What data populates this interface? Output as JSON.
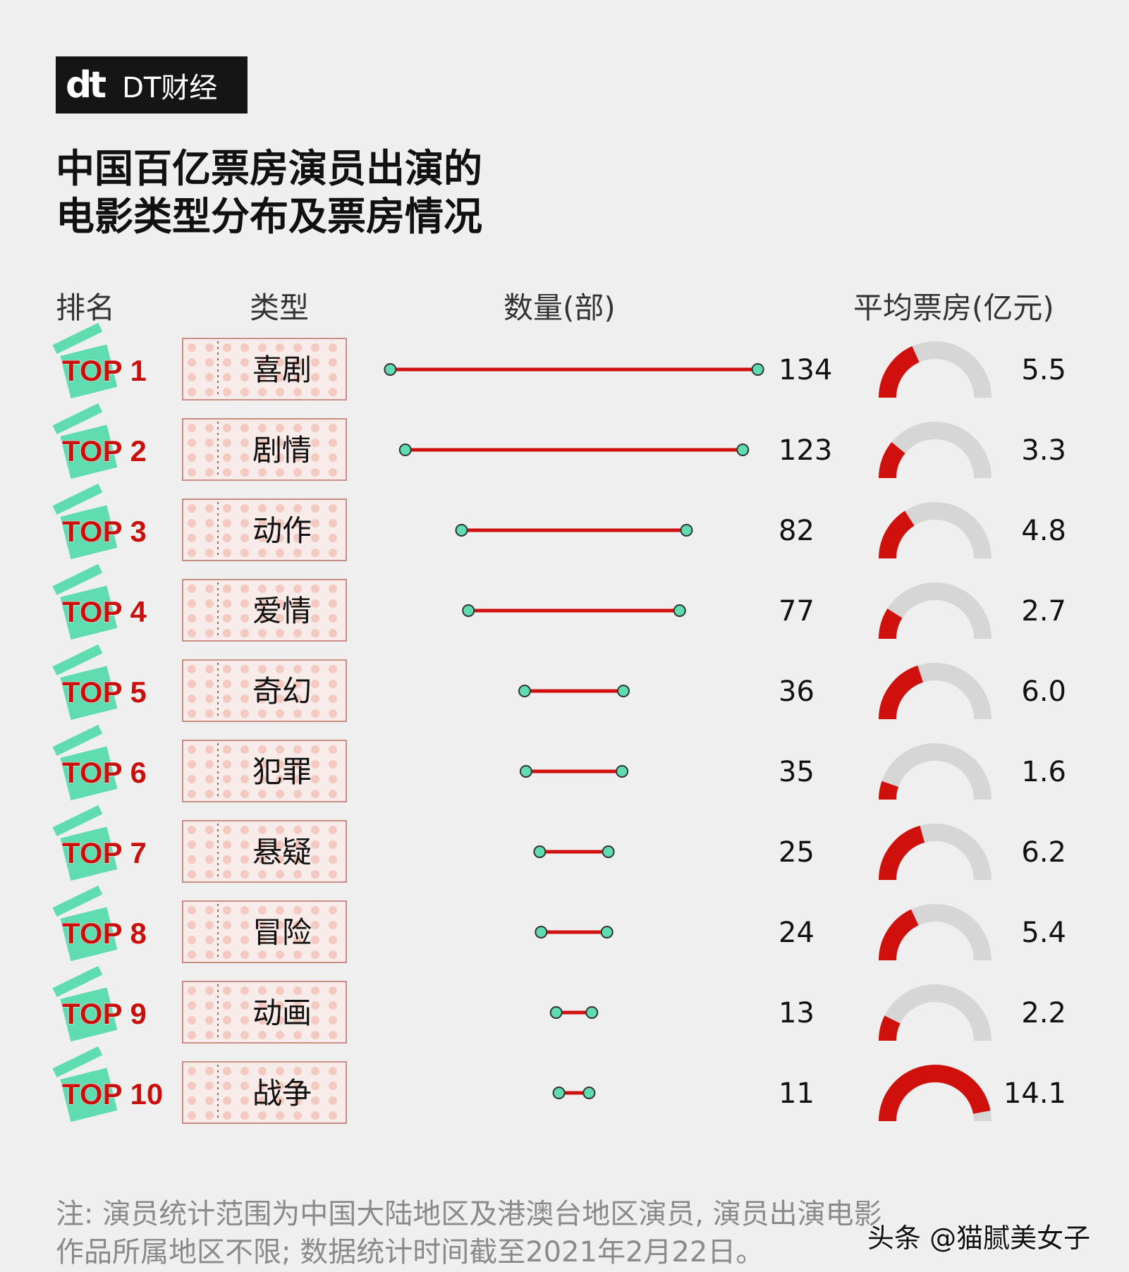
{
  "brand": {
    "mark": "dt",
    "name": "DT财经"
  },
  "title": [
    "中国百亿票房演员出演的",
    "电影类型分布及票房情况"
  ],
  "headers": {
    "rank": "排名",
    "type": "类型",
    "count": "数量(部)",
    "avg": "平均票房(亿元)"
  },
  "colors": {
    "red": "#d0100c",
    "green": "#5fdcb0",
    "gray": "#d6d6d6",
    "ticket": "#f3c9c0"
  },
  "chart_data": {
    "type": "table",
    "rank_labels": [
      "TOP 1",
      "TOP 2",
      "TOP 3",
      "TOP 4",
      "TOP 5",
      "TOP 6",
      "TOP 7",
      "TOP 8",
      "TOP 9",
      "TOP 10"
    ],
    "categories": [
      "喜剧",
      "剧情",
      "动作",
      "爱情",
      "奇幻",
      "犯罪",
      "悬疑",
      "冒险",
      "动画",
      "战争"
    ],
    "series": [
      {
        "name": "数量(部)",
        "values": [
          134,
          123,
          82,
          77,
          36,
          35,
          25,
          24,
          13,
          11
        ]
      },
      {
        "name": "平均票房(亿元)",
        "values": [
          "5.5",
          "3.3",
          "4.8",
          "2.7",
          "6.0",
          "1.6",
          "6.2",
          "5.4",
          "2.2",
          "14.1"
        ]
      }
    ],
    "gauge_max": 15
  },
  "note": [
    "注: 演员统计范围为中国大陆地区及港澳台地区演员, 演员出演电影",
    "作品所属地区不限; 数据统计时间截至2021年2月22日。"
  ],
  "credit": "头条 @猫腻美女子"
}
